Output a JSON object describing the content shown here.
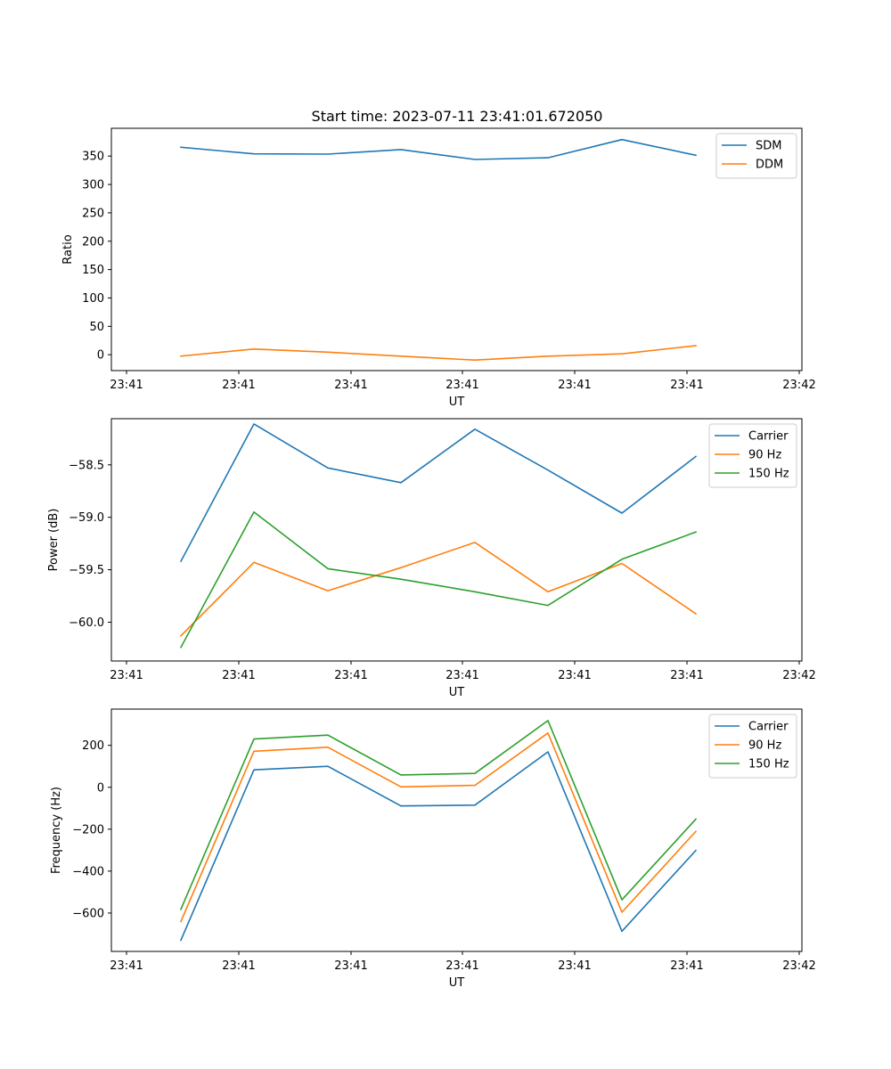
{
  "title": "Start time: 2023-07-11 23:41:01.672050",
  "chart_data": [
    {
      "type": "line",
      "xlabel": "UT",
      "ylabel": "Ratio",
      "x_tick_labels": [
        "23:41",
        "23:41",
        "23:41",
        "23:41",
        "23:41",
        "23:41",
        "23:41"
      ],
      "x_tick_last": "23:42",
      "y_ticks": [
        0,
        50,
        100,
        150,
        200,
        250,
        300,
        350
      ],
      "y_tick_labels": [
        "0",
        "50",
        "100",
        "150",
        "200",
        "250",
        "300",
        "350"
      ],
      "ylim": [
        -28,
        399
      ],
      "legend": "top-right",
      "series": [
        {
          "name": "SDM",
          "color": "#1f77b4",
          "values": [
            365.5,
            354,
            353.5,
            361.5,
            344,
            347,
            379,
            351.5
          ]
        },
        {
          "name": "DDM",
          "color": "#ff7f0e",
          "values": [
            -2.5,
            10,
            4.5,
            -2.5,
            -9.5,
            -2.5,
            1.5,
            16
          ]
        }
      ]
    },
    {
      "type": "line",
      "xlabel": "UT",
      "ylabel": "Power (dB)",
      "x_tick_labels": [
        "23:41",
        "23:41",
        "23:41",
        "23:41",
        "23:41",
        "23:41",
        "23:41"
      ],
      "x_tick_last": "23:42",
      "y_ticks": [
        -60.0,
        -59.5,
        -59.0,
        -58.5
      ],
      "y_tick_labels": [
        "−60.0",
        "−59.5",
        "−59.0",
        "−58.5"
      ],
      "ylim": [
        -60.37,
        -58.06
      ],
      "legend": "top-right",
      "series": [
        {
          "name": "Carrier",
          "color": "#1f77b4",
          "values": [
            -59.42,
            -58.11,
            -58.53,
            -58.67,
            -58.16,
            -58.55,
            -58.96,
            -58.42
          ]
        },
        {
          "name": "90 Hz",
          "color": "#ff7f0e",
          "values": [
            -60.13,
            -59.43,
            -59.7,
            -59.48,
            -59.24,
            -59.71,
            -59.44,
            -59.92
          ]
        },
        {
          "name": "150 Hz",
          "color": "#2ca02c",
          "values": [
            -60.24,
            -58.95,
            -59.49,
            -59.59,
            -59.71,
            -59.84,
            -59.4,
            -59.14
          ]
        }
      ]
    },
    {
      "type": "line",
      "xlabel": "UT",
      "ylabel": "Frequency (Hz)",
      "x_tick_labels": [
        "23:41",
        "23:41",
        "23:41",
        "23:41",
        "23:41",
        "23:41",
        "23:41"
      ],
      "x_tick_last": "23:42",
      "y_ticks": [
        -600,
        -400,
        -200,
        0,
        200
      ],
      "y_tick_labels": [
        "−600",
        "−400",
        "−200",
        "0",
        "200"
      ],
      "ylim": [
        -783,
        373
      ],
      "legend": "top-right",
      "series": [
        {
          "name": "Carrier",
          "color": "#1f77b4",
          "values": [
            -730,
            83,
            100,
            -89,
            -85,
            169,
            -687,
            -301
          ]
        },
        {
          "name": "90 Hz",
          "color": "#ff7f0e",
          "values": [
            -640,
            172,
            191,
            2,
            9,
            259,
            -596,
            -210
          ]
        },
        {
          "name": "150 Hz",
          "color": "#2ca02c",
          "values": [
            -582,
            230,
            249,
            59,
            66,
            318,
            -537,
            -152
          ]
        }
      ]
    }
  ]
}
